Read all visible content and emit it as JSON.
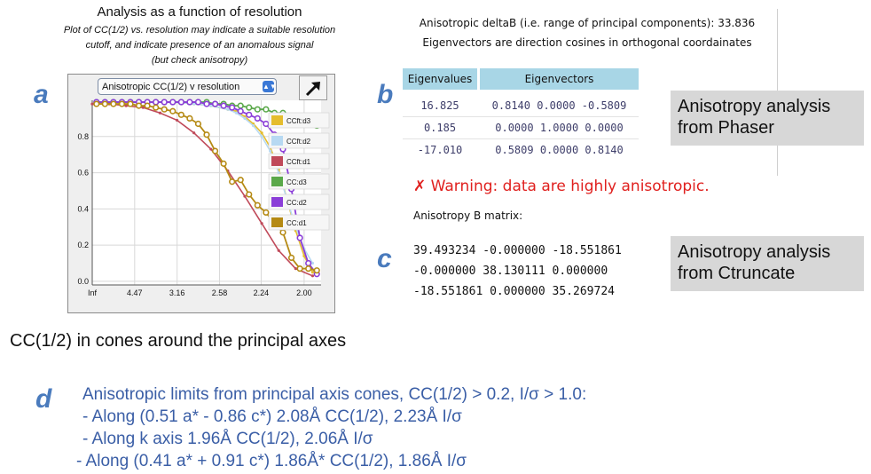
{
  "panel_letters": {
    "a": "a",
    "b": "b",
    "c": "c",
    "d": "d"
  },
  "panel_a": {
    "title": "Analysis as a function of resolution",
    "subtitle_lines": [
      "Plot of CC(1/2) vs. resolution may indicate a suitable resolution",
      "cutoff, and indicate presence of an anomalous signal",
      "(but check anisotropy)"
    ],
    "plot_select_value": "Anisotropic CC(1/2) v resolution",
    "caption": "CC(1/2) in cones around the principal axes"
  },
  "chart_data": {
    "type": "line",
    "title": "",
    "xlabel": "",
    "ylabel": "",
    "x_tick_labels": [
      "Inf",
      "4.47",
      "3.16",
      "2.58",
      "2.24",
      "2.00"
    ],
    "x_range_inv_sq": [
      0.0,
      0.27
    ],
    "y_tick_labels": [
      "0.0",
      "0.2",
      "0.4",
      "0.6",
      "0.8"
    ],
    "ylim": [
      -0.02,
      1.0
    ],
    "grid": true,
    "legend_placement": "right",
    "series": [
      {
        "name": "CCft:d3",
        "color": "#e5bd2e",
        "style": "line",
        "x": [
          0.1,
          0.12,
          0.14,
          0.16,
          0.17,
          0.18,
          0.19,
          0.2,
          0.21,
          0.22,
          0.23,
          0.24,
          0.25,
          0.26
        ],
        "y": [
          0.99,
          0.98,
          0.97,
          0.95,
          0.94,
          0.91,
          0.87,
          0.82,
          0.74,
          0.62,
          0.45,
          0.28,
          0.14,
          0.05
        ]
      },
      {
        "name": "CCft:d2",
        "color": "#b7d9f2",
        "style": "line",
        "x": [
          0.1,
          0.12,
          0.14,
          0.16,
          0.17,
          0.18,
          0.19,
          0.2,
          0.21,
          0.22,
          0.23,
          0.24,
          0.25,
          0.26
        ],
        "y": [
          0.99,
          0.98,
          0.97,
          0.95,
          0.93,
          0.9,
          0.86,
          0.8,
          0.72,
          0.6,
          0.45,
          0.3,
          0.18,
          0.1
        ]
      },
      {
        "name": "CCft:d1",
        "color": "#c04a5a",
        "style": "line",
        "x": [
          0.0,
          0.02,
          0.04,
          0.06,
          0.08,
          0.1,
          0.12,
          0.14,
          0.16,
          0.18,
          0.2,
          0.22,
          0.24,
          0.26
        ],
        "y": [
          0.98,
          0.98,
          0.97,
          0.96,
          0.93,
          0.89,
          0.82,
          0.73,
          0.61,
          0.47,
          0.32,
          0.17,
          0.07,
          0.03
        ]
      },
      {
        "name": "CC:d3",
        "color": "#5aa84a",
        "style": "points",
        "x": [
          0.005,
          0.015,
          0.025,
          0.035,
          0.045,
          0.055,
          0.065,
          0.075,
          0.085,
          0.095,
          0.105,
          0.115,
          0.125,
          0.135,
          0.145,
          0.155,
          0.165,
          0.175,
          0.185,
          0.195,
          0.205,
          0.215,
          0.225,
          0.235,
          0.245,
          0.255,
          0.265
        ],
        "y": [
          0.99,
          0.99,
          0.99,
          0.99,
          0.99,
          0.99,
          0.99,
          0.99,
          0.99,
          0.99,
          0.99,
          0.99,
          0.99,
          0.99,
          0.98,
          0.98,
          0.97,
          0.97,
          0.96,
          0.95,
          0.95,
          0.93,
          0.93,
          0.91,
          0.9,
          0.88,
          0.86
        ]
      },
      {
        "name": "CC:d2",
        "color": "#8b3ed8",
        "style": "points",
        "x": [
          0.005,
          0.015,
          0.025,
          0.035,
          0.045,
          0.055,
          0.065,
          0.075,
          0.085,
          0.095,
          0.105,
          0.115,
          0.125,
          0.135,
          0.145,
          0.155,
          0.165,
          0.175,
          0.185,
          0.195,
          0.205,
          0.215,
          0.225,
          0.235,
          0.245,
          0.255,
          0.265
        ],
        "y": [
          0.99,
          0.99,
          0.99,
          0.99,
          0.99,
          0.99,
          0.99,
          0.99,
          0.99,
          0.99,
          0.99,
          0.99,
          0.99,
          0.98,
          0.98,
          0.97,
          0.96,
          0.94,
          0.92,
          0.9,
          0.87,
          0.81,
          0.73,
          0.51,
          0.24,
          0.1,
          0.04
        ]
      },
      {
        "name": "CC:d1",
        "color": "#b58a14",
        "style": "points",
        "x": [
          0.005,
          0.015,
          0.025,
          0.035,
          0.045,
          0.055,
          0.065,
          0.075,
          0.085,
          0.095,
          0.105,
          0.115,
          0.125,
          0.135,
          0.145,
          0.155,
          0.165,
          0.175,
          0.185,
          0.195,
          0.205,
          0.215,
          0.225,
          0.235,
          0.245,
          0.255,
          0.265
        ],
        "y": [
          0.98,
          0.98,
          0.98,
          0.98,
          0.98,
          0.97,
          0.97,
          0.96,
          0.95,
          0.94,
          0.92,
          0.9,
          0.87,
          0.81,
          0.72,
          0.65,
          0.55,
          0.56,
          0.48,
          0.42,
          0.38,
          0.32,
          0.27,
          0.13,
          0.07,
          0.07,
          0.06
        ]
      }
    ]
  },
  "panel_b": {
    "header_line1": "Anisotropic deltaB (i.e. range of principal components): 33.836",
    "header_line2": "Eigenvectors are direction cosines in orthogonal coordainates",
    "table": {
      "headers": [
        "Eigenvalues",
        "Eigenvectors"
      ],
      "rows": [
        [
          "16.825",
          "0.8140 0.0000 -0.5809"
        ],
        [
          "0.185",
          "0.0000 1.0000 0.0000"
        ],
        [
          "-17.010",
          "0.5809 0.0000 0.8140"
        ]
      ]
    },
    "note_lines": [
      "Anisotropy analysis",
      "from Phaser"
    ]
  },
  "panel_c": {
    "warning": "✗ Warning: data are highly anisotropic.",
    "matrix_label": "Anisotropy B matrix:",
    "matrix_rows": [
      "39.493234 -0.000000 -18.551861",
      "-0.000000 38.130111 0.000000",
      "-18.551861 0.000000 35.269724"
    ],
    "note_lines": [
      "Anisotropy analysis",
      "from Ctruncate"
    ]
  },
  "panel_d": {
    "heading": "Anisotropic limits from principal axis cones, CC(1/2) > 0.2, I/σ > 1.0:",
    "items": [
      "-  Along (0.51 a* - 0.86 c*) 2.08Å CC(1/2), 2.23Å I/σ",
      "- Along k axis 1.96Å CC(1/2), 2.06Å I/σ",
      "-  Along (0.41 a* + 0.91 c*) 1.86Å* CC(1/2), 1.86Å I/σ"
    ]
  }
}
